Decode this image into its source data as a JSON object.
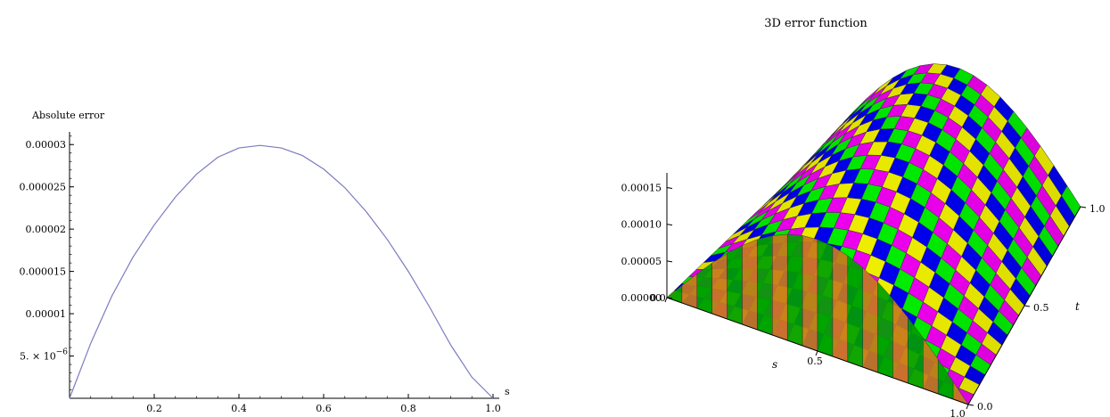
{
  "chart_data": [
    {
      "type": "line",
      "title": "",
      "xlabel": "s",
      "ylabel": "Absolute error",
      "xlim": [
        0,
        1.0
      ],
      "ylim": [
        0,
        3.15e-05
      ],
      "x_ticks": [
        {
          "value": 0.2,
          "label": "0.2"
        },
        {
          "value": 0.4,
          "label": "0.4"
        },
        {
          "value": 0.6,
          "label": "0.6"
        },
        {
          "value": 0.8,
          "label": "0.8"
        },
        {
          "value": 1.0,
          "label": "1.0"
        }
      ],
      "y_ticks": [
        {
          "value": 5e-06,
          "label": "5. × 10",
          "exponent": "−6"
        },
        {
          "value": 1e-05,
          "label": "0.00001"
        },
        {
          "value": 1.5e-05,
          "label": "0.000015"
        },
        {
          "value": 2e-05,
          "label": "0.00002"
        },
        {
          "value": 2.5e-05,
          "label": "0.000025"
        },
        {
          "value": 3e-05,
          "label": "0.00003"
        }
      ],
      "color": "#7b7bbf",
      "series": [
        {
          "x": [
            0,
            0.05,
            0.1,
            0.15,
            0.2,
            0.25,
            0.3,
            0.35,
            0.4,
            0.45,
            0.5,
            0.55,
            0.6,
            0.65,
            0.7,
            0.75,
            0.8,
            0.85,
            0.9,
            0.95,
            1.0
          ],
          "y": [
            0,
            6.5e-06,
            1.21e-05,
            1.67e-05,
            2.05e-05,
            2.38e-05,
            2.65e-05,
            2.85e-05,
            2.96e-05,
            2.99e-05,
            2.96e-05,
            2.87e-05,
            2.71e-05,
            2.49e-05,
            2.21e-05,
            1.88e-05,
            1.5e-05,
            1.08e-05,
            6.3e-06,
            2.5e-06,
            0
          ]
        }
      ]
    },
    {
      "type": "surface3d",
      "title": "3D error function",
      "xlabel": "s",
      "ylabel": "t",
      "zlabel": "",
      "xlim": [
        0,
        1.0
      ],
      "ylim": [
        0,
        1.0
      ],
      "zlim": [
        0,
        0.00017
      ],
      "x_ticks": [
        "0.0",
        "0.5",
        "1.0"
      ],
      "y_ticks": [
        "0.0",
        "0.5",
        "1.0"
      ],
      "z_ticks": [
        {
          "value": 0,
          "label": "0.00000"
        },
        {
          "value": 5e-05,
          "label": "0.00005"
        },
        {
          "value": 0.0001,
          "label": "0.00010"
        },
        {
          "value": 0.00015,
          "label": "0.00015"
        }
      ],
      "z_max_approx": 0.00016,
      "mesh_size": 20,
      "band_colors": [
        "#ffff00",
        "#0000ff",
        "#00ff00",
        "#ff00ff"
      ],
      "front_band_colors": [
        "#00a000",
        "#c87a1e"
      ]
    }
  ]
}
